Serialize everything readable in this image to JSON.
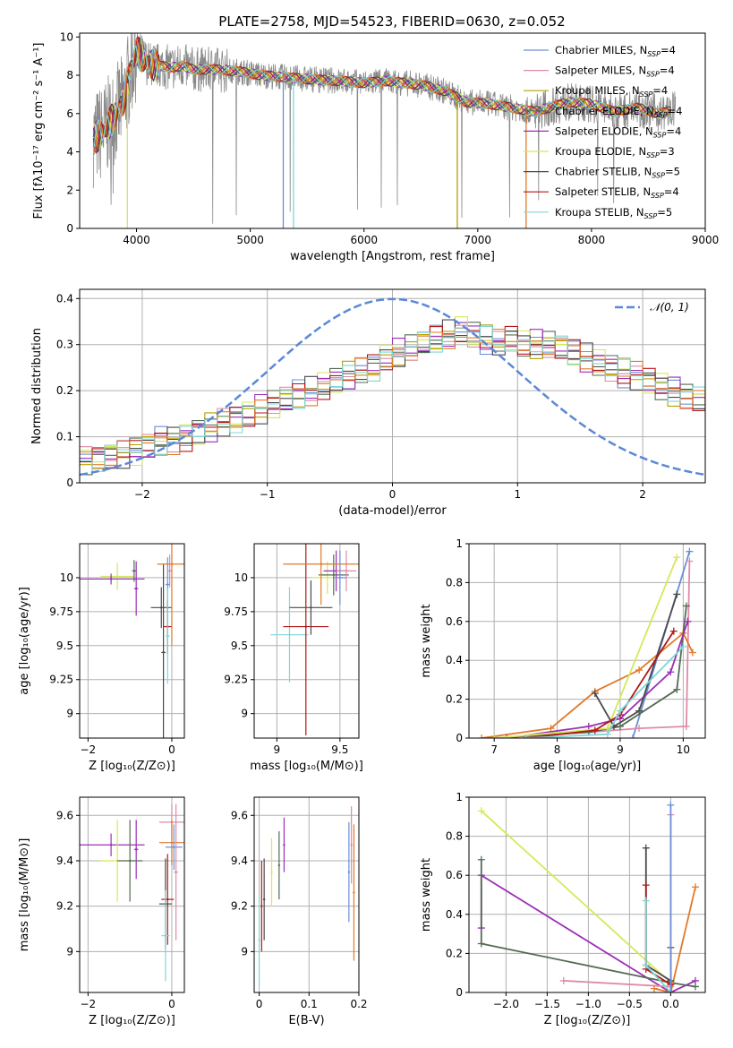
{
  "figure_title": "PLATE=2758, MJD=54523, FIBERID=0630, z=0.052",
  "colors": {
    "chabrier_miles": "#6b8fd8",
    "salpeter_miles": "#e08aa6",
    "kroupa_miles": "#b5a000",
    "chabrier_elodie": "#556b55",
    "salpeter_elodie": "#9b2fb8",
    "kroupa_elodie": "#d6e85a",
    "chabrier_stelib": "#4a4a4a",
    "salpeter_stelib": "#b01818",
    "kroupa_stelib": "#7fd6d6",
    "orange": "#e07a2a",
    "data_gray": "#8a8a8a",
    "normal_curve": "#5b88d8",
    "grid": "#b0b0b0"
  },
  "chart_data": [
    {
      "id": "spectrum",
      "type": "line",
      "xlabel": "wavelength [Angstrom, rest frame]",
      "ylabel": "Flux [fλ10⁻¹⁷ erg cm⁻² s⁻¹ A⁻¹]",
      "xlim": [
        3500,
        9000
      ],
      "ylim": [
        0,
        10.2
      ],
      "xticks": [
        4000,
        5000,
        6000,
        7000,
        8000,
        9000
      ],
      "yticks": [
        0,
        2,
        4,
        6,
        8,
        10
      ],
      "grid": false,
      "legend_position": "top-right",
      "legend": [
        {
          "label": "Chabrier MILES, N",
          "sub": "SSP",
          "suffix": "=4",
          "color_key": "chabrier_miles"
        },
        {
          "label": "Salpeter MILES, N",
          "sub": "SSP",
          "suffix": "=4",
          "color_key": "salpeter_miles"
        },
        {
          "label": "Kroupa MILES, N",
          "sub": "SSP",
          "suffix": "=4",
          "color_key": "kroupa_miles"
        },
        {
          "label": "Chabrier ELODIE, N",
          "sub": "SSP",
          "suffix": "=4",
          "color_key": "chabrier_elodie"
        },
        {
          "label": "Salpeter ELODIE, N",
          "sub": "SSP",
          "suffix": "=4",
          "color_key": "salpeter_elodie"
        },
        {
          "label": "Kroupa ELODIE, N",
          "sub": "SSP",
          "suffix": "=3",
          "color_key": "kroupa_elodie"
        },
        {
          "label": "Chabrier STELIB, N",
          "sub": "SSP",
          "suffix": "=5",
          "color_key": "chabrier_stelib"
        },
        {
          "label": "Salpeter STELIB, N",
          "sub": "SSP",
          "suffix": "=4",
          "color_key": "salpeter_stelib"
        },
        {
          "label": "Kroupa STELIB, N",
          "sub": "SSP",
          "suffix": "=5",
          "color_key": "kroupa_stelib"
        }
      ],
      "data_trend": {
        "x": [
          3620,
          3700,
          3800,
          3880,
          3950,
          4000,
          4100,
          4200,
          4300,
          4400,
          4500,
          4700,
          4900,
          5100,
          5300,
          5500,
          5800,
          6000,
          6200,
          6500,
          6700,
          6900,
          7100,
          7300,
          7500,
          7800,
          8000,
          8200,
          8400,
          8600,
          8750
        ],
        "y": [
          4.7,
          5.0,
          5.8,
          6.6,
          8.3,
          9.3,
          8.6,
          8.5,
          8.4,
          8.5,
          8.3,
          8.3,
          8.2,
          8.0,
          7.9,
          7.8,
          7.7,
          7.6,
          7.7,
          7.5,
          7.2,
          6.6,
          6.5,
          6.3,
          6.1,
          6.6,
          6.5,
          6.1,
          6.3,
          6.0,
          6.2
        ]
      },
      "model_dropouts": [
        {
          "x": 3920,
          "color_key": "kroupa_elodie"
        },
        {
          "x": 5290,
          "color_key": "chabrier_miles"
        },
        {
          "x": 5380,
          "color_key": "kroupa_stelib"
        },
        {
          "x": 6820,
          "color_key": "kroupa_miles"
        },
        {
          "x": 7425,
          "color_key": "orange"
        }
      ]
    },
    {
      "id": "residual_histogram",
      "type": "line",
      "xlabel": "(data-model)/error",
      "ylabel": "Normed distribution",
      "xlim": [
        -2.5,
        2.5
      ],
      "ylim": [
        0,
        0.42
      ],
      "xticks": [
        -2,
        -1,
        0,
        1,
        2
      ],
      "yticks": [
        0.0,
        0.1,
        0.2,
        0.3,
        0.4
      ],
      "grid": true,
      "legend_position": "top-right",
      "legend": [
        {
          "label": "𝒩(0, 1)",
          "color_key": "normal_curve",
          "dash": true
        }
      ],
      "bin_width": 0.1,
      "bins_from": -2.5,
      "base_heights": [
        0.05,
        0.055,
        0.06,
        0.065,
        0.07,
        0.08,
        0.09,
        0.095,
        0.1,
        0.11,
        0.12,
        0.13,
        0.14,
        0.15,
        0.16,
        0.17,
        0.18,
        0.19,
        0.2,
        0.21,
        0.22,
        0.23,
        0.24,
        0.25,
        0.27,
        0.28,
        0.29,
        0.3,
        0.31,
        0.32,
        0.33,
        0.32,
        0.31,
        0.3,
        0.31,
        0.3,
        0.3,
        0.3,
        0.29,
        0.28,
        0.27,
        0.26,
        0.25,
        0.24,
        0.23,
        0.22,
        0.21,
        0.2,
        0.19,
        0.18,
        0.17,
        0.16,
        0.15,
        0.14,
        0.13,
        0.12,
        0.11,
        0.1,
        0.09,
        0.08,
        0.07,
        0.065,
        0.06,
        0.055,
        0.05,
        0.05,
        0.05,
        0.05,
        0.05,
        0.05
      ]
    },
    {
      "id": "age_vs_Z",
      "type": "scatter",
      "xlabel": "Z [log₁₀(Z/Z⊙)]",
      "ylabel": "age  [log₁₀(age/yr)]",
      "xlim": [
        -2.2,
        0.3
      ],
      "ylim": [
        8.82,
        10.25
      ],
      "xticks": [
        -2,
        0
      ],
      "yticks": [
        9.0,
        9.25,
        9.5,
        9.75,
        10.0
      ],
      "grid": true,
      "points": [
        {
          "x": -0.1,
          "y": 9.95,
          "xerr": 0.05,
          "yerr": 0.2,
          "color_key": "chabrier_miles"
        },
        {
          "x": -0.05,
          "y": 10.05,
          "xerr": 0.05,
          "yerr": 0.12,
          "color_key": "salpeter_miles"
        },
        {
          "x": -1.3,
          "y": 10.01,
          "xerr": 0.4,
          "yerr": 0.1,
          "color_key": "kroupa_elodie"
        },
        {
          "x": -0.9,
          "y": 10.05,
          "xerr": 0.05,
          "yerr": 0.08,
          "color_key": "chabrier_elodie"
        },
        {
          "x": -1.45,
          "y": 9.99,
          "xerr": 0.8,
          "yerr": 0.04,
          "color_key": "salpeter_elodie"
        },
        {
          "x": -0.85,
          "y": 9.92,
          "xerr": 0.05,
          "yerr": 0.2,
          "color_key": "salpeter_elodie"
        },
        {
          "x": -0.25,
          "y": 9.78,
          "xerr": 0.25,
          "yerr": 0.15,
          "color_key": "chabrier_stelib"
        },
        {
          "x": -0.2,
          "y": 9.45,
          "xerr": 0.05,
          "yerr": 0.65,
          "color_key": "chabrier_stelib"
        },
        {
          "x": -0.1,
          "y": 9.64,
          "xerr": 0.1,
          "yerr": 0.2,
          "color_key": "salpeter_stelib"
        },
        {
          "x": -0.1,
          "y": 9.57,
          "xerr": 0.05,
          "yerr": 0.35,
          "color_key": "kroupa_stelib"
        },
        {
          "x": 0.0,
          "y": 10.1,
          "xerr": 0.35,
          "yerr": 0.6,
          "color_key": "orange"
        }
      ]
    },
    {
      "id": "age_vs_mass",
      "type": "scatter",
      "xlabel": "mass [log₁₀(M/M⊙)]",
      "ylabel": "",
      "xlim": [
        8.82,
        9.65
      ],
      "ylim": [
        8.82,
        10.25
      ],
      "xticks": [
        9.0,
        9.5
      ],
      "yticks": [
        9.0,
        9.25,
        9.5,
        9.75,
        10.0
      ],
      "grid": true,
      "points": [
        {
          "x": 9.1,
          "y": 9.58,
          "xerr": 0.15,
          "yerr": 0.35,
          "color_key": "kroupa_stelib"
        },
        {
          "x": 9.23,
          "y": 9.64,
          "xerr": 0.18,
          "yerr": 0.8,
          "color_key": "salpeter_stelib"
        },
        {
          "x": 9.27,
          "y": 9.78,
          "xerr": 0.17,
          "yerr": 0.2,
          "color_key": "chabrier_stelib"
        },
        {
          "x": 9.4,
          "y": 10.0,
          "xerr": 0.12,
          "yerr": 0.12,
          "color_key": "kroupa_elodie"
        },
        {
          "x": 9.45,
          "y": 10.02,
          "xerr": 0.12,
          "yerr": 0.15,
          "color_key": "chabrier_elodie"
        },
        {
          "x": 9.47,
          "y": 10.05,
          "xerr": 0.1,
          "yerr": 0.15,
          "color_key": "salpeter_elodie"
        },
        {
          "x": 9.55,
          "y": 10.05,
          "xerr": 0.08,
          "yerr": 0.15,
          "color_key": "salpeter_miles"
        },
        {
          "x": 9.35,
          "y": 10.1,
          "xerr": 0.3,
          "yerr": 0.3,
          "color_key": "orange"
        },
        {
          "x": 9.5,
          "y": 10.0,
          "xerr": 0.05,
          "yerr": 0.2,
          "color_key": "chabrier_miles"
        }
      ]
    },
    {
      "id": "weight_vs_age",
      "type": "line",
      "xlabel": "age  [log₁₀(age/yr)]",
      "ylabel": "mass weight",
      "xlim": [
        6.6,
        10.35
      ],
      "ylim": [
        0,
        1.0
      ],
      "xticks": [
        7,
        8,
        9,
        10
      ],
      "yticks": [
        0.0,
        0.2,
        0.4,
        0.6,
        0.8,
        1.0
      ],
      "grid": true,
      "series": [
        {
          "color_key": "chabrier_miles",
          "x": [
            9.2,
            10.1
          ],
          "y": [
            0.0,
            0.96
          ]
        },
        {
          "color_key": "salpeter_miles",
          "x": [
            7.0,
            8.5,
            9.3,
            10.05,
            10.1
          ],
          "y": [
            0.0,
            0.03,
            0.05,
            0.06,
            0.91
          ]
        },
        {
          "color_key": "orange",
          "x": [
            6.8,
            7.9,
            8.6,
            9.3,
            10.0,
            10.15
          ],
          "y": [
            0.0,
            0.05,
            0.24,
            0.35,
            0.54,
            0.44
          ]
        },
        {
          "color_key": "chabrier_elodie",
          "x": [
            7.0,
            8.5,
            9.0,
            9.9,
            10.05
          ],
          "y": [
            0.0,
            0.03,
            0.06,
            0.25,
            0.68
          ]
        },
        {
          "color_key": "salpeter_elodie",
          "x": [
            7.2,
            8.5,
            9.0,
            9.8,
            10.07
          ],
          "y": [
            0.0,
            0.06,
            0.1,
            0.34,
            0.6
          ]
        },
        {
          "color_key": "kroupa_elodie",
          "x": [
            7.0,
            8.8,
            9.9
          ],
          "y": [
            0.0,
            0.05,
            0.93
          ]
        },
        {
          "color_key": "chabrier_stelib",
          "x": [
            8.6,
            8.9,
            9.3,
            9.9
          ],
          "y": [
            0.23,
            0.06,
            0.14,
            0.74
          ]
        },
        {
          "color_key": "salpeter_stelib",
          "x": [
            7.5,
            8.6,
            9.0,
            9.85
          ],
          "y": [
            0.0,
            0.04,
            0.12,
            0.55
          ]
        },
        {
          "color_key": "kroupa_stelib",
          "x": [
            7.5,
            8.8,
            9.0,
            10.0
          ],
          "y": [
            0.0,
            0.02,
            0.14,
            0.47
          ]
        }
      ]
    },
    {
      "id": "mass_vs_Z",
      "type": "scatter",
      "xlabel": "Z [log₁₀(Z/Z⊙)]",
      "ylabel": "mass [log₁₀(M/M⊙)]",
      "xlim": [
        -2.2,
        0.3
      ],
      "ylim": [
        8.82,
        9.68
      ],
      "xticks": [
        -2,
        0
      ],
      "yticks": [
        9.0,
        9.2,
        9.4,
        9.6
      ],
      "grid": true,
      "points": [
        {
          "x": -1.45,
          "y": 9.47,
          "xerr": 0.8,
          "yerr": 0.05,
          "color_key": "salpeter_elodie"
        },
        {
          "x": -0.85,
          "y": 9.45,
          "xerr": 0.05,
          "yerr": 0.13,
          "color_key": "salpeter_elodie"
        },
        {
          "x": -1.3,
          "y": 9.4,
          "xerr": 0.4,
          "yerr": 0.18,
          "color_key": "kroupa_elodie"
        },
        {
          "x": -1.0,
          "y": 9.4,
          "xerr": 0.3,
          "yerr": 0.18,
          "color_key": "chabrier_elodie"
        },
        {
          "x": 0.0,
          "y": 9.57,
          "xerr": 0.3,
          "yerr": 0.08,
          "color_key": "salpeter_miles"
        },
        {
          "x": 0.0,
          "y": 9.48,
          "xerr": 0.3,
          "yerr": 0.1,
          "color_key": "orange"
        },
        {
          "x": 0.05,
          "y": 9.46,
          "xerr": 0.2,
          "yerr": 0.1,
          "color_key": "chabrier_miles"
        },
        {
          "x": -0.1,
          "y": 9.23,
          "xerr": 0.15,
          "yerr": 0.2,
          "color_key": "salpeter_stelib"
        },
        {
          "x": -0.15,
          "y": 9.21,
          "xerr": 0.15,
          "yerr": 0.2,
          "color_key": "chabrier_stelib"
        },
        {
          "x": -0.15,
          "y": 9.07,
          "xerr": 0.1,
          "yerr": 0.2,
          "color_key": "kroupa_stelib"
        },
        {
          "x": 0.1,
          "y": 9.35,
          "xerr": 0.05,
          "yerr": 0.3,
          "color_key": "salpeter_miles"
        }
      ]
    },
    {
      "id": "mass_vs_EBV",
      "type": "scatter",
      "xlabel": "E(B-V)",
      "ylabel": "",
      "xlim": [
        -0.01,
        0.2
      ],
      "ylim": [
        8.82,
        9.68
      ],
      "xticks": [
        0.0,
        0.1,
        0.2
      ],
      "yticks": [
        9.0,
        9.2,
        9.4,
        9.6
      ],
      "grid": true,
      "points": [
        {
          "x": 0.0,
          "y": 9.05,
          "yerr": 0.2,
          "color_key": "kroupa_stelib"
        },
        {
          "x": 0.005,
          "y": 9.2,
          "yerr": 0.2,
          "color_key": "salpeter_stelib"
        },
        {
          "x": 0.01,
          "y": 9.23,
          "yerr": 0.18,
          "color_key": "chabrier_stelib"
        },
        {
          "x": 0.025,
          "y": 9.35,
          "yerr": 0.15,
          "color_key": "kroupa_elodie"
        },
        {
          "x": 0.04,
          "y": 9.38,
          "yerr": 0.15,
          "color_key": "chabrier_elodie"
        },
        {
          "x": 0.05,
          "y": 9.47,
          "yerr": 0.12,
          "color_key": "salpeter_elodie"
        },
        {
          "x": 0.18,
          "y": 9.35,
          "yerr": 0.22,
          "color_key": "chabrier_miles"
        },
        {
          "x": 0.185,
          "y": 9.47,
          "yerr": 0.17,
          "color_key": "salpeter_miles"
        },
        {
          "x": 0.19,
          "y": 9.26,
          "yerr": 0.3,
          "color_key": "orange"
        }
      ]
    },
    {
      "id": "weight_vs_Z",
      "type": "line",
      "xlabel": "Z [log₁₀(Z/Z⊙)]",
      "ylabel": "mass weight",
      "xlim": [
        -2.45,
        0.42
      ],
      "ylim": [
        0,
        1.0
      ],
      "xticks": [
        -2.0,
        -1.5,
        -1.0,
        -0.5,
        0.0
      ],
      "yticks": [
        0.0,
        0.2,
        0.4,
        0.6,
        0.8,
        1.0
      ],
      "xtick_labels": [
        "−2.0",
        "−1.5",
        "−1.0",
        "−0.5",
        "0.0"
      ],
      "grid": true,
      "series": [
        {
          "color_key": "kroupa_elodie",
          "x": [
            -2.3,
            0.0,
            0.0
          ],
          "y": [
            0.93,
            0.05,
            0.0
          ]
        },
        {
          "color_key": "salpeter_elodie",
          "x": [
            -2.3,
            -2.3,
            0.0,
            0.3
          ],
          "y": [
            0.33,
            0.6,
            0.0,
            0.06
          ]
        },
        {
          "color_key": "chabrier_elodie",
          "x": [
            -2.3,
            -2.3,
            0.0,
            0.3
          ],
          "y": [
            0.68,
            0.25,
            0.05,
            0.03
          ]
        },
        {
          "color_key": "salpeter_miles",
          "x": [
            -1.3,
            0.0,
            0.0
          ],
          "y": [
            0.06,
            0.03,
            0.91
          ]
        },
        {
          "color_key": "orange",
          "x": [
            -0.2,
            0.0,
            0.3
          ],
          "y": [
            0.02,
            0.0,
            0.54
          ]
        },
        {
          "color_key": "chabrier_stelib",
          "x": [
            -0.3,
            -0.3,
            0.0,
            0.0
          ],
          "y": [
            0.74,
            0.14,
            0.06,
            0.23
          ]
        },
        {
          "color_key": "salpeter_stelib",
          "x": [
            -0.3,
            -0.3,
            0.0,
            0.0
          ],
          "y": [
            0.55,
            0.12,
            0.04,
            0.0
          ]
        },
        {
          "color_key": "kroupa_stelib",
          "x": [
            -0.3,
            -0.3,
            0.0
          ],
          "y": [
            0.47,
            0.14,
            0.0
          ]
        },
        {
          "color_key": "chabrier_miles",
          "x": [
            0.0,
            0.0
          ],
          "y": [
            0.0,
            0.96
          ]
        }
      ]
    }
  ]
}
